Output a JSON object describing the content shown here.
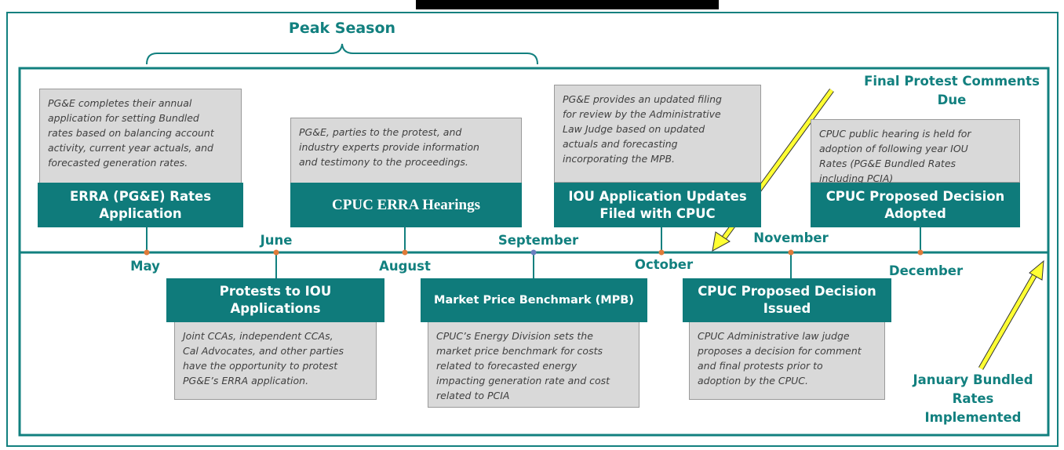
{
  "title": "Peak Season",
  "months": [
    "May",
    "June",
    "August",
    "September",
    "October",
    "November",
    "December"
  ],
  "events": [
    {
      "title": "ERRA (PG&E) Rates Application",
      "description": [
        "PG&E completes their annual",
        "application for setting Bundled",
        "rates based on balancing account",
        "activity, current year actuals, and",
        "forecasted generation rates."
      ]
    },
    {
      "title": "CPUC ERRA Hearings",
      "description": [
        "PG&E, parties to the protest, and",
        "industry experts provide information",
        "and testimony to the proceedings."
      ]
    },
    {
      "title": "IOU Application Updates Filed with CPUC",
      "description": [
        "PG&E provides an updated filing",
        "for review by the Administrative",
        "Law Judge based on updated",
        "actuals and forecasting",
        "incorporating the MPB."
      ]
    },
    {
      "title": "CPUC Proposed Decision Adopted",
      "description": [
        "CPUC public hearing is held for",
        "adoption of following year IOU",
        "Rates (PG&E Bundled Rates",
        "including PCIA)"
      ]
    },
    {
      "title": "Protests to IOU Applications",
      "description": [
        "Joint CCAs, independent CCAs,",
        "Cal Advocates, and other parties",
        "have the opportunity to protest",
        "PG&E’s ERRA application."
      ]
    },
    {
      "title": "Market Price Benchmark (MPB)",
      "description": [
        "CPUC’s Energy Division sets the",
        "market price benchmark for costs",
        "related to forecasted energy",
        "impacting generation rate and cost",
        "related to PCIA"
      ]
    },
    {
      "title": "CPUC Proposed Decision Issued",
      "description": [
        "CPUC Administrative law judge",
        "proposes a decision for comment",
        "and final protests prior to",
        "adoption by the CPUC."
      ]
    }
  ],
  "annotations": [
    "Final Protest Comments Due",
    "January Bundled Rates Implemented"
  ]
}
